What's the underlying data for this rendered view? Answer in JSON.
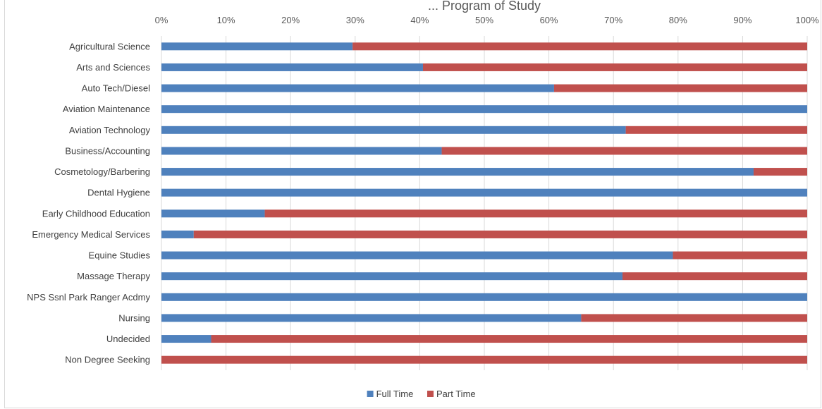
{
  "chart_data": {
    "type": "bar",
    "orientation": "horizontal",
    "stacked": "percent",
    "title": "... Program of Study",
    "xlabel": "",
    "ylabel": "",
    "xlim": [
      0,
      100
    ],
    "x_ticks": [
      "0%",
      "10%",
      "20%",
      "30%",
      "40%",
      "50%",
      "60%",
      "70%",
      "80%",
      "90%",
      "100%"
    ],
    "grid": true,
    "legend_position": "bottom",
    "categories": [
      "Agricultural Science",
      "Arts and Sciences",
      "Auto Tech/Diesel",
      "Aviation Maintenance",
      "Aviation Technology",
      "Business/Accounting",
      "Cosmetology/Barbering",
      "Dental Hygiene",
      "Early Childhood Education",
      "Emergency Medical Services",
      "Equine Studies",
      "Massage Therapy",
      "NPS Ssnl Park Ranger Acdmy",
      "Nursing",
      "Undecided",
      "Non Degree Seeking"
    ],
    "series": [
      {
        "name": "Full Time",
        "color": "#4f81bd",
        "values": [
          29.6,
          40.5,
          60.8,
          100,
          71.9,
          43.4,
          91.7,
          100,
          16.0,
          5.0,
          79.2,
          71.4,
          100,
          65.0,
          7.7,
          0
        ]
      },
      {
        "name": "Part Time",
        "color": "#c0504d",
        "values": [
          70.4,
          59.5,
          39.2,
          0,
          28.1,
          56.6,
          8.3,
          0,
          84.0,
          95.0,
          20.8,
          28.6,
          0,
          35.0,
          92.3,
          100
        ]
      }
    ]
  }
}
